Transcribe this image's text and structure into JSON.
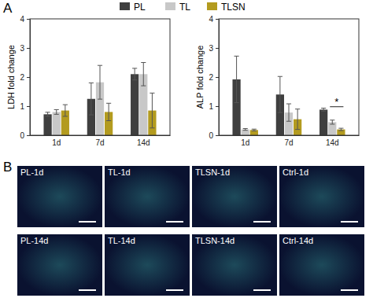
{
  "chart_data": [
    {
      "type": "bar",
      "y_label": "LDH fold change",
      "categories": [
        "1d",
        "7d",
        "14d"
      ],
      "series": [
        {
          "name": "PL",
          "color": "#3f3f3f",
          "values": [
            0.72,
            1.25,
            2.1
          ],
          "errors": [
            0.07,
            0.55,
            0.2
          ]
        },
        {
          "name": "TL",
          "color": "#c8c8c8",
          "values": [
            0.8,
            1.82,
            2.1
          ],
          "errors": [
            0.08,
            0.58,
            0.4
          ]
        },
        {
          "name": "TLSN",
          "color": "#b39b1f",
          "values": [
            0.85,
            0.8,
            0.85
          ],
          "errors": [
            0.2,
            0.3,
            0.6
          ]
        }
      ],
      "ylim": [
        0,
        4
      ],
      "yticks": [
        0,
        1,
        2,
        3,
        4
      ],
      "grid": false
    },
    {
      "type": "bar",
      "y_label": "ALP fold change",
      "categories": [
        "1d",
        "7d",
        "14d"
      ],
      "series": [
        {
          "name": "PL",
          "color": "#3f3f3f",
          "values": [
            1.92,
            1.4,
            0.88
          ],
          "errors": [
            0.8,
            0.62,
            0.05
          ]
        },
        {
          "name": "TL",
          "color": "#c8c8c8",
          "values": [
            0.2,
            0.78,
            0.45
          ],
          "errors": [
            0.03,
            0.3,
            0.07
          ]
        },
        {
          "name": "TLSN",
          "color": "#b39b1f",
          "values": [
            0.18,
            0.55,
            0.2
          ],
          "errors": [
            0.03,
            0.35,
            0.04
          ]
        }
      ],
      "ylim": [
        0,
        4
      ],
      "yticks": [
        0,
        1,
        2,
        3,
        4
      ],
      "grid": false,
      "annotations": [
        {
          "text": "*",
          "category": "14d",
          "y": 0.98
        }
      ]
    }
  ],
  "figure": {
    "panel_labels": [
      "A",
      "B"
    ],
    "images": [
      [
        "PL-1d",
        "TL-1d",
        "TLSN-1d",
        "Ctrl-1d"
      ],
      [
        "PL-14d",
        "TL-14d",
        "TLSN-14d",
        "Ctrl-14d"
      ]
    ]
  }
}
